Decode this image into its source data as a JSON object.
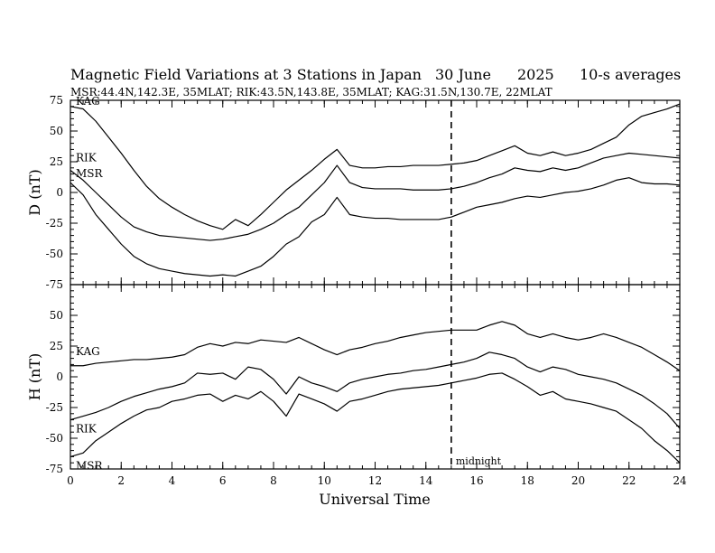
{
  "header": {
    "title": "Magnetic Field Variations at 3 Stations in Japan",
    "date": "30 June",
    "year": "2025",
    "sampling": "10-s averages",
    "stations_line": "MSR:44.4N,142.3E, 35MLAT;  RIK:43.5N,143.8E, 35MLAT;  KAG:31.5N,130.7E, 22MLAT"
  },
  "chart_data": {
    "type": "line",
    "xlabel": "Universal Time",
    "xlim": [
      0,
      24
    ],
    "x_ticks": [
      0,
      2,
      4,
      6,
      8,
      10,
      12,
      14,
      16,
      18,
      20,
      22,
      24
    ],
    "x": [
      0,
      0.5,
      1,
      1.5,
      2,
      2.5,
      3,
      3.5,
      4,
      4.5,
      5,
      5.5,
      6,
      6.5,
      7,
      7.5,
      8,
      8.5,
      9,
      9.5,
      10,
      10.5,
      11,
      11.5,
      12,
      12.5,
      13,
      13.5,
      14,
      14.5,
      15,
      15.5,
      16,
      16.5,
      17,
      17.5,
      18,
      18.5,
      19,
      19.5,
      20,
      20.5,
      21,
      21.5,
      22,
      22.5,
      23,
      23.5,
      24
    ],
    "marker": {
      "x": 15,
      "label": "midnight"
    },
    "panels": [
      {
        "name": "D",
        "ylabel": "D (nT)",
        "ylim": [
          -75,
          75
        ],
        "y_ticks": [
          -75,
          -50,
          -25,
          0,
          25,
          50,
          75
        ],
        "series": [
          {
            "name": "KAG",
            "values": [
              70,
              68,
              58,
              45,
              32,
              18,
              5,
              -5,
              -12,
              -18,
              -23,
              -27,
              -30,
              -22,
              -27,
              -18,
              -8,
              2,
              10,
              18,
              27,
              35,
              22,
              20,
              20,
              21,
              21,
              22,
              22,
              22,
              23,
              24,
              26,
              30,
              34,
              38,
              32,
              30,
              33,
              30,
              32,
              35,
              40,
              45,
              55,
              62,
              65,
              68,
              72
            ]
          },
          {
            "name": "RIK",
            "values": [
              18,
              10,
              0,
              -10,
              -20,
              -28,
              -32,
              -35,
              -36,
              -37,
              -38,
              -39,
              -38,
              -36,
              -34,
              -30,
              -25,
              -18,
              -12,
              -2,
              8,
              22,
              8,
              4,
              3,
              3,
              3,
              2,
              2,
              2,
              3,
              5,
              8,
              12,
              15,
              20,
              18,
              17,
              20,
              18,
              20,
              24,
              28,
              30,
              32,
              31,
              30,
              29,
              28
            ]
          },
          {
            "name": "MSR",
            "values": [
              8,
              -2,
              -18,
              -30,
              -42,
              -52,
              -58,
              -62,
              -64,
              -66,
              -67,
              -68,
              -67,
              -68,
              -64,
              -60,
              -52,
              -42,
              -36,
              -24,
              -18,
              -4,
              -18,
              -20,
              -21,
              -21,
              -22,
              -22,
              -22,
              -22,
              -20,
              -16,
              -12,
              -10,
              -8,
              -5,
              -3,
              -4,
              -2,
              0,
              1,
              3,
              6,
              10,
              12,
              8,
              7,
              7,
              6
            ]
          }
        ]
      },
      {
        "name": "H",
        "ylabel": "H (nT)",
        "ylim": [
          -75,
          75
        ],
        "y_ticks": [
          -75,
          -50,
          -25,
          0,
          25,
          50
        ],
        "series": [
          {
            "name": "KAG",
            "values": [
              9,
              9,
              11,
              12,
              13,
              14,
              14,
              15,
              16,
              18,
              24,
              27,
              25,
              28,
              27,
              30,
              29,
              28,
              32,
              27,
              22,
              18,
              22,
              24,
              27,
              29,
              32,
              34,
              36,
              37,
              38,
              38,
              38,
              42,
              45,
              42,
              35,
              32,
              35,
              32,
              30,
              32,
              35,
              32,
              28,
              24,
              18,
              12,
              5
            ]
          },
          {
            "name": "RIK",
            "values": [
              -35,
              -32,
              -29,
              -25,
              -20,
              -16,
              -13,
              -10,
              -8,
              -5,
              3,
              2,
              3,
              -2,
              8,
              6,
              -2,
              -14,
              0,
              -5,
              -8,
              -12,
              -5,
              -2,
              0,
              2,
              3,
              5,
              6,
              8,
              10,
              12,
              15,
              20,
              18,
              15,
              8,
              4,
              8,
              6,
              2,
              0,
              -2,
              -5,
              -10,
              -15,
              -22,
              -30,
              -42
            ]
          },
          {
            "name": "MSR",
            "values": [
              -65,
              -62,
              -52,
              -45,
              -38,
              -32,
              -27,
              -25,
              -20,
              -18,
              -15,
              -14,
              -20,
              -15,
              -18,
              -12,
              -20,
              -32,
              -14,
              -18,
              -22,
              -28,
              -20,
              -18,
              -15,
              -12,
              -10,
              -9,
              -8,
              -7,
              -5,
              -3,
              -1,
              2,
              3,
              -2,
              -8,
              -15,
              -12,
              -18,
              -20,
              -22,
              -25,
              -28,
              -35,
              -42,
              -52,
              -60,
              -70
            ]
          }
        ]
      }
    ]
  }
}
